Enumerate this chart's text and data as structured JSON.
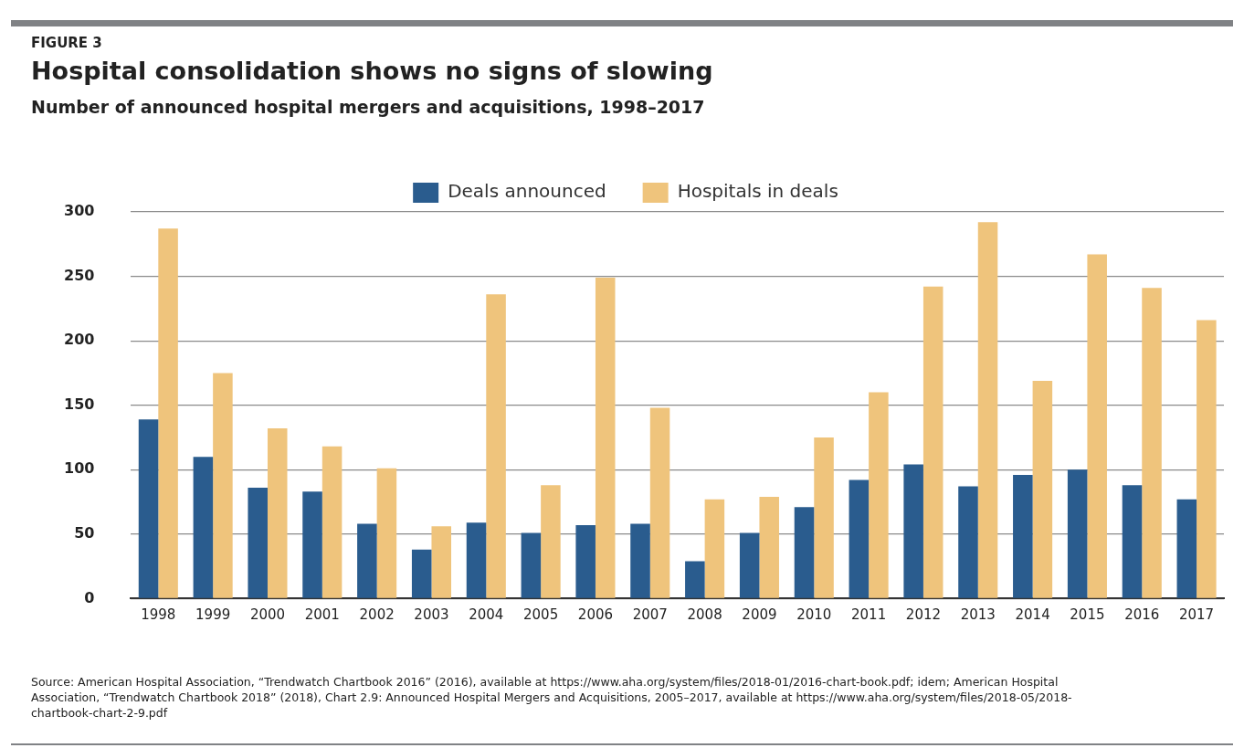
{
  "chart_data": {
    "type": "bar",
    "title": "Hospital consolidation shows no signs of slowing",
    "subtitle": "Number of announced hospital mergers and acquisitions, 1998–2017",
    "categories": [
      "1998",
      "1999",
      "2000",
      "2001",
      "2002",
      "2003",
      "2004",
      "2005",
      "2006",
      "2007",
      "2008",
      "2009",
      "2010",
      "2011",
      "2012",
      "2013",
      "2014",
      "2015",
      "2016",
      "2017"
    ],
    "series": [
      {
        "name": "Deals announced",
        "color": "#2a5c8e",
        "values": [
          139,
          110,
          86,
          83,
          58,
          38,
          59,
          51,
          57,
          58,
          29,
          51,
          71,
          92,
          104,
          87,
          96,
          100,
          88,
          77
        ]
      },
      {
        "name": "Hospitals in deals",
        "color": "#efc47c",
        "values": [
          287,
          175,
          132,
          118,
          101,
          56,
          236,
          88,
          249,
          148,
          77,
          79,
          125,
          160,
          242,
          292,
          169,
          267,
          241,
          216
        ]
      }
    ],
    "ylim": [
      0,
      300
    ],
    "yticks": [
      0,
      50,
      100,
      150,
      200,
      250,
      300
    ],
    "grid": "y",
    "legend": "top",
    "annotations": [
      "FIGURE 3",
      "Source: American Hospital Association, “Trendwatch Chartbook 2016” (2016), available at https://www.aha.org/system/files/2018-01/2016-chart-book.pdf; idem; American Hospital Association, “Trendwatch Chartbook 2018” (2018), Chart 2.9: Announced Hospital Mergers and Acquisitions, 2005–2017, available at https://www.aha.org/system/files/2018-05/2018-chartbook-chart-2-9.pdf"
    ]
  }
}
